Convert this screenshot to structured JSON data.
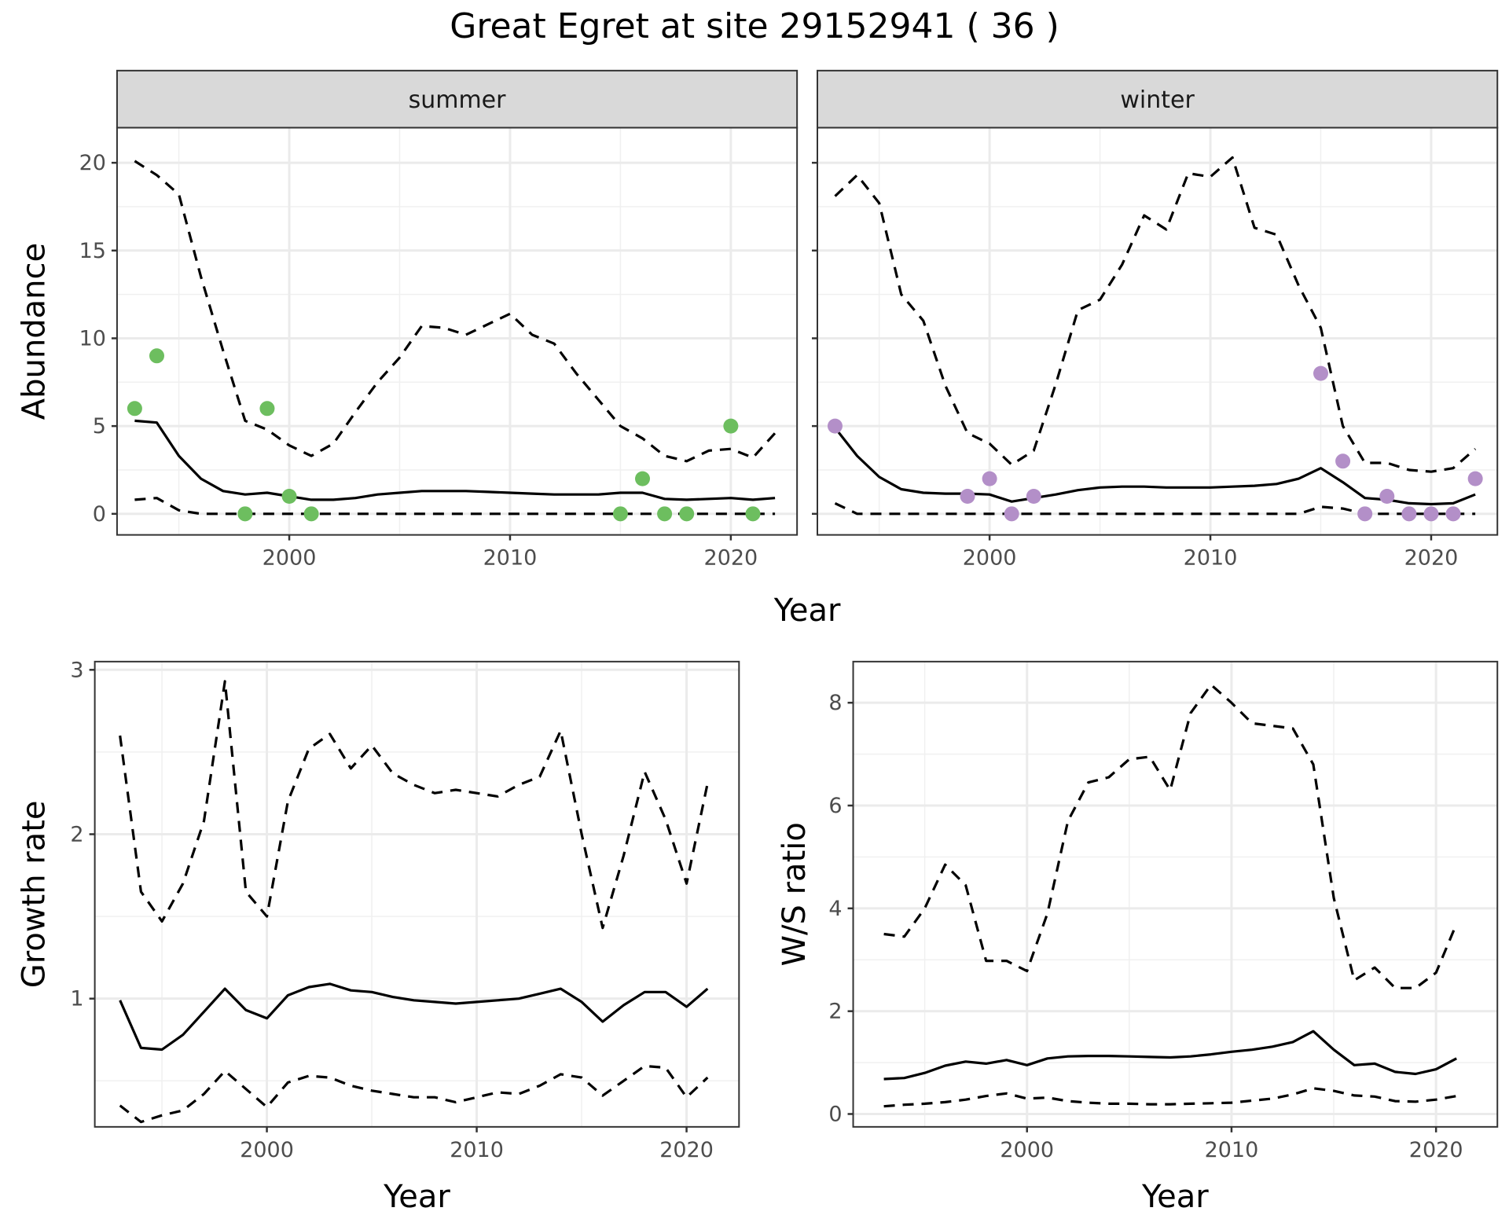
{
  "title": "Great Egret at site 29152941 ( 36 )",
  "chart_data": [
    {
      "id": "abundance",
      "type": "line",
      "facet_layout": "two panels side by side",
      "ylabel": "Abundance",
      "xlabel": "Year",
      "xlim": [
        1992.2,
        2023.0
      ],
      "ylim": [
        -1.2,
        22.0
      ],
      "xticks": [
        2000,
        2010,
        2020
      ],
      "yticks": [
        0,
        5,
        10,
        15,
        20
      ],
      "x_minor": [
        1995,
        2005,
        2015
      ],
      "y_minor": [
        2.5,
        7.5,
        12.5,
        17.5
      ],
      "grid": true,
      "panels": [
        {
          "strip": "summer",
          "point_color": "#6dbe5f",
          "mean": {
            "x": [
              1993,
              1994,
              1995,
              1996,
              1997,
              1998,
              1999,
              2000,
              2001,
              2002,
              2003,
              2004,
              2005,
              2006,
              2007,
              2008,
              2009,
              2010,
              2011,
              2012,
              2013,
              2014,
              2015,
              2016,
              2017,
              2018,
              2019,
              2020,
              2021,
              2022
            ],
            "y": [
              5.3,
              5.2,
              3.3,
              2.0,
              1.3,
              1.1,
              1.2,
              1.0,
              0.8,
              0.8,
              0.9,
              1.1,
              1.2,
              1.3,
              1.3,
              1.3,
              1.25,
              1.2,
              1.15,
              1.1,
              1.1,
              1.1,
              1.2,
              1.2,
              0.85,
              0.8,
              0.85,
              0.9,
              0.8,
              0.9
            ]
          },
          "upper": {
            "x": [
              1993,
              1994,
              1995,
              1996,
              1997,
              1998,
              1999,
              2000,
              2001,
              2002,
              2003,
              2004,
              2005,
              2006,
              2007,
              2008,
              2009,
              2010,
              2011,
              2012,
              2013,
              2014,
              2015,
              2016,
              2017,
              2018,
              2019,
              2020,
              2021,
              2022
            ],
            "y": [
              20.1,
              19.3,
              18.2,
              13.5,
              9.3,
              5.3,
              4.8,
              3.9,
              3.3,
              4.0,
              5.8,
              7.5,
              8.9,
              10.7,
              10.6,
              10.2,
              10.8,
              11.4,
              10.2,
              9.7,
              8.0,
              6.5,
              5.0,
              4.3,
              3.3,
              3.0,
              3.6,
              3.7,
              3.2,
              4.6
            ]
          },
          "lower": {
            "x": [
              1993,
              1994,
              1995,
              1996,
              1997,
              1998,
              1999,
              2000,
              2001,
              2002,
              2003,
              2004,
              2005,
              2006,
              2007,
              2008,
              2009,
              2010,
              2011,
              2012,
              2013,
              2014,
              2015,
              2016,
              2017,
              2018,
              2019,
              2020,
              2021,
              2022
            ],
            "y": [
              0.8,
              0.9,
              0.2,
              0,
              0,
              0,
              0,
              0,
              0,
              0,
              0,
              0,
              0,
              0,
              0,
              0,
              0,
              0,
              0,
              0,
              0,
              0,
              0,
              0,
              0,
              0,
              0,
              0,
              0,
              0
            ]
          },
          "points": {
            "x": [
              1993,
              1994,
              1998,
              1999,
              2000,
              2001,
              2015,
              2016,
              2017,
              2018,
              2020,
              2021
            ],
            "y": [
              6,
              9,
              0,
              6,
              1,
              0,
              0,
              2,
              0,
              0,
              5,
              0
            ]
          }
        },
        {
          "strip": "winter",
          "point_color": "#b38fc8",
          "mean": {
            "x": [
              1993,
              1994,
              1995,
              1996,
              1997,
              1998,
              1999,
              2000,
              2001,
              2002,
              2003,
              2004,
              2005,
              2006,
              2007,
              2008,
              2009,
              2010,
              2011,
              2012,
              2013,
              2014,
              2015,
              2016,
              2017,
              2018,
              2019,
              2020,
              2021,
              2022
            ],
            "y": [
              4.9,
              3.3,
              2.1,
              1.4,
              1.2,
              1.15,
              1.15,
              1.1,
              0.7,
              0.9,
              1.1,
              1.35,
              1.5,
              1.55,
              1.55,
              1.5,
              1.5,
              1.5,
              1.55,
              1.6,
              1.7,
              2.0,
              2.6,
              1.8,
              0.9,
              0.8,
              0.6,
              0.55,
              0.6,
              1.1
            ]
          },
          "upper": {
            "x": [
              1993,
              1994,
              1995,
              1996,
              1997,
              1998,
              1999,
              2000,
              2001,
              2002,
              2003,
              2004,
              2005,
              2006,
              2007,
              2008,
              2009,
              2010,
              2011,
              2012,
              2013,
              2014,
              2015,
              2016,
              2017,
              2018,
              2019,
              2020,
              2021,
              2022
            ],
            "y": [
              18.1,
              19.3,
              17.7,
              12.5,
              11.0,
              7.3,
              4.6,
              4.0,
              2.8,
              3.6,
              7.4,
              11.6,
              12.2,
              14.2,
              17.0,
              16.2,
              19.4,
              19.2,
              20.3,
              16.3,
              15.9,
              13.0,
              10.6,
              5.0,
              2.9,
              2.9,
              2.5,
              2.4,
              2.6,
              3.7
            ]
          },
          "lower": {
            "x": [
              1993,
              1994,
              1995,
              1996,
              1997,
              1998,
              1999,
              2000,
              2001,
              2002,
              2003,
              2004,
              2005,
              2006,
              2007,
              2008,
              2009,
              2010,
              2011,
              2012,
              2013,
              2014,
              2015,
              2016,
              2017,
              2018,
              2019,
              2020,
              2021,
              2022
            ],
            "y": [
              0.6,
              0,
              0,
              0,
              0,
              0,
              0,
              0,
              0,
              0,
              0,
              0,
              0,
              0,
              0,
              0,
              0,
              0,
              0,
              0,
              0,
              0,
              0.4,
              0.3,
              0,
              0,
              0,
              0,
              0,
              0
            ]
          },
          "points": {
            "x": [
              1993,
              1999,
              2000,
              2001,
              2002,
              2015,
              2016,
              2017,
              2018,
              2019,
              2020,
              2021,
              2022
            ],
            "y": [
              5,
              1,
              2,
              0,
              1,
              8,
              3,
              0,
              1,
              0,
              0,
              0,
              2
            ]
          }
        }
      ]
    },
    {
      "id": "growth",
      "type": "line",
      "ylabel": "Growth rate",
      "xlabel": "Year",
      "xlim": [
        1991.8,
        2022.5
      ],
      "ylim": [
        0.22,
        3.05
      ],
      "xticks": [
        2000,
        2010,
        2020
      ],
      "yticks": [
        1,
        2,
        3
      ],
      "x_minor": [
        1995,
        2005,
        2015
      ],
      "y_minor": [
        0.5,
        1.5,
        2.5
      ],
      "grid": true,
      "mean": {
        "x": [
          1993,
          1994,
          1995,
          1996,
          1997,
          1998,
          1999,
          2000,
          2001,
          2002,
          2003,
          2004,
          2005,
          2006,
          2007,
          2008,
          2009,
          2010,
          2011,
          2012,
          2013,
          2014,
          2015,
          2016,
          2017,
          2018,
          2019,
          2020,
          2021
        ],
        "y": [
          0.99,
          0.7,
          0.69,
          0.78,
          0.92,
          1.06,
          0.93,
          0.88,
          1.02,
          1.07,
          1.09,
          1.05,
          1.04,
          1.01,
          0.99,
          0.98,
          0.97,
          0.98,
          0.99,
          1.0,
          1.03,
          1.06,
          0.98,
          0.86,
          0.96,
          1.04,
          1.04,
          0.95,
          1.06
        ]
      },
      "upper": {
        "x": [
          1993,
          1994,
          1995,
          1996,
          1997,
          1998,
          1999,
          2000,
          2001,
          2002,
          2003,
          2004,
          2005,
          2006,
          2007,
          2008,
          2009,
          2010,
          2011,
          2012,
          2013,
          2014,
          2015,
          2016,
          2017,
          2018,
          2019,
          2020,
          2021
        ],
        "y": [
          2.6,
          1.65,
          1.47,
          1.7,
          2.08,
          2.93,
          1.65,
          1.5,
          2.2,
          2.52,
          2.61,
          2.4,
          2.54,
          2.37,
          2.3,
          2.25,
          2.27,
          2.25,
          2.23,
          2.3,
          2.35,
          2.63,
          2.0,
          1.43,
          1.87,
          2.38,
          2.09,
          1.7,
          2.31
        ]
      },
      "lower": {
        "x": [
          1993,
          1994,
          1995,
          1996,
          1997,
          1998,
          1999,
          2000,
          2001,
          2002,
          2003,
          2004,
          2005,
          2006,
          2007,
          2008,
          2009,
          2010,
          2011,
          2012,
          2013,
          2014,
          2015,
          2016,
          2017,
          2018,
          2019,
          2020,
          2021
        ],
        "y": [
          0.35,
          0.25,
          0.29,
          0.32,
          0.42,
          0.56,
          0.45,
          0.34,
          0.49,
          0.53,
          0.52,
          0.47,
          0.44,
          0.42,
          0.4,
          0.4,
          0.37,
          0.4,
          0.43,
          0.42,
          0.47,
          0.54,
          0.52,
          0.41,
          0.5,
          0.59,
          0.58,
          0.4,
          0.52
        ]
      }
    },
    {
      "id": "ws_ratio",
      "type": "line",
      "ylabel": "W/S ratio",
      "xlabel": "Year",
      "xlim": [
        1991.5,
        2023.0
      ],
      "ylim": [
        -0.25,
        8.8
      ],
      "xticks": [
        2000,
        2010,
        2020
      ],
      "yticks": [
        0,
        2,
        4,
        6,
        8
      ],
      "x_minor": [
        1995,
        2005,
        2015
      ],
      "y_minor": [
        1,
        3,
        5,
        7
      ],
      "grid": true,
      "mean": {
        "x": [
          1993,
          1994,
          1995,
          1996,
          1997,
          1998,
          1999,
          2000,
          2001,
          2002,
          2003,
          2004,
          2005,
          2006,
          2007,
          2008,
          2009,
          2010,
          2011,
          2012,
          2013,
          2014,
          2015,
          2016,
          2017,
          2018,
          2019,
          2020,
          2021
        ],
        "y": [
          0.68,
          0.7,
          0.8,
          0.94,
          1.02,
          0.98,
          1.05,
          0.95,
          1.08,
          1.12,
          1.13,
          1.13,
          1.12,
          1.11,
          1.1,
          1.12,
          1.16,
          1.21,
          1.25,
          1.31,
          1.4,
          1.61,
          1.25,
          0.95,
          0.98,
          0.82,
          0.78,
          0.87,
          1.08
        ]
      },
      "upper": {
        "x": [
          1993,
          1994,
          1995,
          1996,
          1997,
          1998,
          1999,
          2000,
          2001,
          2002,
          2003,
          2004,
          2005,
          2006,
          2007,
          2008,
          2009,
          2010,
          2011,
          2012,
          2013,
          2014,
          2015,
          2016,
          2017,
          2018,
          2019,
          2020,
          2021
        ],
        "y": [
          3.5,
          3.45,
          4.0,
          4.85,
          4.45,
          2.98,
          2.98,
          2.78,
          3.9,
          5.7,
          6.45,
          6.55,
          6.9,
          6.95,
          6.3,
          7.8,
          8.35,
          8.0,
          7.6,
          7.55,
          7.5,
          6.8,
          4.2,
          2.6,
          2.85,
          2.45,
          2.45,
          2.75,
          3.7
        ]
      },
      "lower": {
        "x": [
          1993,
          1994,
          1995,
          1996,
          1997,
          1998,
          1999,
          2000,
          2001,
          2002,
          2003,
          2004,
          2005,
          2006,
          2007,
          2008,
          2009,
          2010,
          2011,
          2012,
          2013,
          2014,
          2015,
          2016,
          2017,
          2018,
          2019,
          2020,
          2021
        ],
        "y": [
          0.15,
          0.18,
          0.2,
          0.23,
          0.28,
          0.35,
          0.4,
          0.3,
          0.32,
          0.25,
          0.22,
          0.2,
          0.2,
          0.19,
          0.19,
          0.2,
          0.21,
          0.22,
          0.26,
          0.3,
          0.38,
          0.5,
          0.45,
          0.36,
          0.34,
          0.25,
          0.24,
          0.28,
          0.35
        ]
      }
    }
  ]
}
